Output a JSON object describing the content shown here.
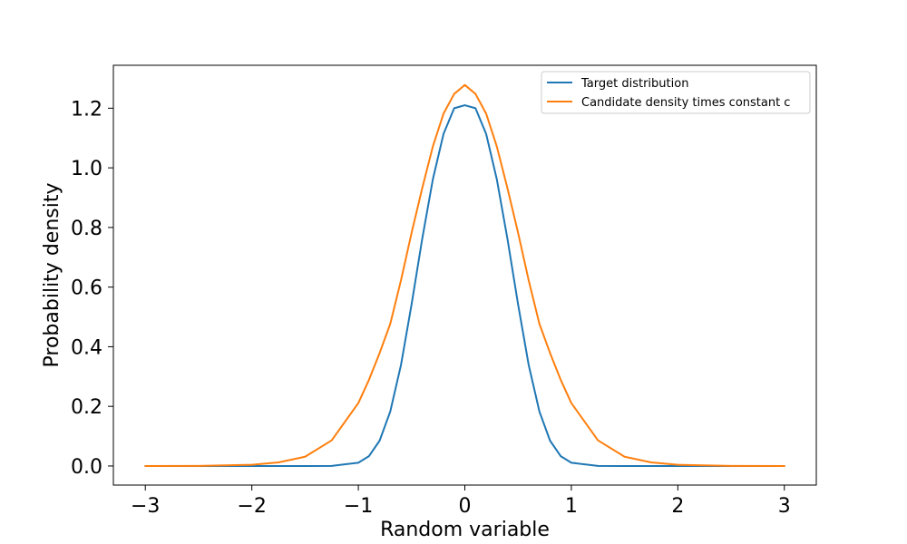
{
  "chart_data": {
    "type": "line",
    "title": "",
    "xlabel": "Random variable",
    "ylabel": "Probability density",
    "xlim": [
      -3.3,
      3.3
    ],
    "ylim": [
      -0.064,
      1.344
    ],
    "x_ticks": [
      -3,
      -2,
      -1,
      0,
      1,
      2,
      3
    ],
    "x_tick_labels": [
      "−3",
      "−2",
      "−1",
      "0",
      "1",
      "2",
      "3"
    ],
    "y_ticks": [
      0.0,
      0.2,
      0.4,
      0.6,
      0.8,
      1.0,
      1.2
    ],
    "y_tick_labels": [
      "0.0",
      "0.2",
      "0.4",
      "0.6",
      "0.8",
      "1.0",
      "1.2"
    ],
    "grid": false,
    "legend_position": "top-right",
    "series": [
      {
        "name": "Target distribution",
        "color": "#1f77b4",
        "x": [
          -3.0,
          -2.0,
          -1.5,
          -1.25,
          -1.0,
          -0.9,
          -0.8,
          -0.7,
          -0.6,
          -0.5,
          -0.4,
          -0.3,
          -0.2,
          -0.1,
          0.0,
          0.1,
          0.2,
          0.3,
          0.4,
          0.5,
          0.6,
          0.7,
          0.8,
          0.9,
          1.0,
          1.25,
          1.5,
          2.0,
          3.0
        ],
        "y": [
          0.0,
          0.0,
          0.0,
          0.0003,
          0.011,
          0.033,
          0.085,
          0.183,
          0.338,
          0.542,
          0.762,
          0.962,
          1.114,
          1.2,
          1.21,
          1.2,
          1.114,
          0.962,
          0.762,
          0.542,
          0.338,
          0.183,
          0.085,
          0.033,
          0.011,
          0.0003,
          0.0,
          0.0,
          0.0
        ]
      },
      {
        "name": "Candidate density times constant c",
        "color": "#ff7f0e",
        "x": [
          -3.0,
          -2.5,
          -2.0,
          -1.75,
          -1.5,
          -1.25,
          -1.0,
          -0.9,
          -0.8,
          -0.7,
          -0.6,
          -0.5,
          -0.4,
          -0.3,
          -0.2,
          -0.1,
          0.0,
          0.1,
          0.2,
          0.3,
          0.4,
          0.5,
          0.6,
          0.7,
          0.8,
          0.9,
          1.0,
          1.25,
          1.5,
          1.75,
          2.0,
          2.5,
          3.0
        ],
        "y": [
          0.0,
          0.0003,
          0.004,
          0.012,
          0.031,
          0.086,
          0.211,
          0.289,
          0.379,
          0.477,
          0.622,
          0.782,
          0.932,
          1.072,
          1.182,
          1.248,
          1.278,
          1.248,
          1.182,
          1.072,
          0.932,
          0.782,
          0.622,
          0.477,
          0.379,
          0.289,
          0.211,
          0.086,
          0.031,
          0.012,
          0.004,
          0.0003,
          0.0
        ]
      }
    ]
  }
}
